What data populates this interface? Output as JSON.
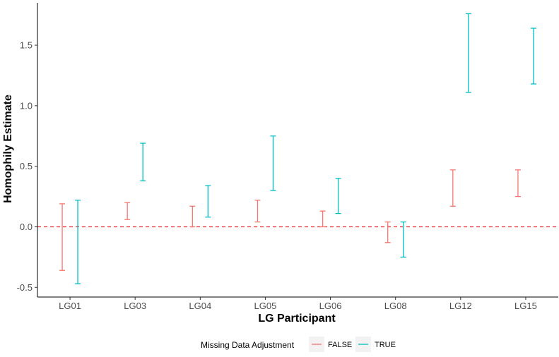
{
  "chart_data": {
    "type": "errorbar",
    "title": "",
    "xlabel": "LG Participant",
    "ylabel": "Homophily Estimate",
    "categories": [
      "LG01",
      "LG03",
      "LG04",
      "LG05",
      "LG06",
      "LG08",
      "LG12",
      "LG15"
    ],
    "yticks": [
      "-0.5",
      "0.0",
      "0.5",
      "1.0",
      "1.5"
    ],
    "ylim": [
      -0.58,
      1.85
    ],
    "reference_line": {
      "y": 0.0,
      "style": "dashed",
      "color": "#e8262c"
    },
    "grid": false,
    "legend": {
      "title": "Missing Data Adjustment",
      "position": "bottom",
      "entries": [
        "FALSE",
        "TRUE"
      ]
    },
    "series": [
      {
        "name": "FALSE",
        "color": "#f8766d",
        "intervals": [
          {
            "category": "LG01",
            "low": -0.36,
            "high": 0.19
          },
          {
            "category": "LG03",
            "low": 0.06,
            "high": 0.2
          },
          {
            "category": "LG04",
            "low": 0.0,
            "high": 0.17
          },
          {
            "category": "LG05",
            "low": 0.04,
            "high": 0.22
          },
          {
            "category": "LG06",
            "low": 0.0,
            "high": 0.13
          },
          {
            "category": "LG08",
            "low": -0.13,
            "high": 0.04
          },
          {
            "category": "LG12",
            "low": 0.17,
            "high": 0.47
          },
          {
            "category": "LG15",
            "low": 0.25,
            "high": 0.47
          }
        ]
      },
      {
        "name": "TRUE",
        "color": "#00bfc4",
        "intervals": [
          {
            "category": "LG01",
            "low": -0.47,
            "high": 0.22
          },
          {
            "category": "LG03",
            "low": 0.38,
            "high": 0.69
          },
          {
            "category": "LG04",
            "low": 0.08,
            "high": 0.34
          },
          {
            "category": "LG05",
            "low": 0.3,
            "high": 0.75
          },
          {
            "category": "LG06",
            "low": 0.11,
            "high": 0.4
          },
          {
            "category": "LG08",
            "low": -0.25,
            "high": 0.04
          },
          {
            "category": "LG12",
            "low": 1.11,
            "high": 1.76
          },
          {
            "category": "LG15",
            "low": 1.18,
            "high": 1.64
          }
        ]
      }
    ]
  }
}
